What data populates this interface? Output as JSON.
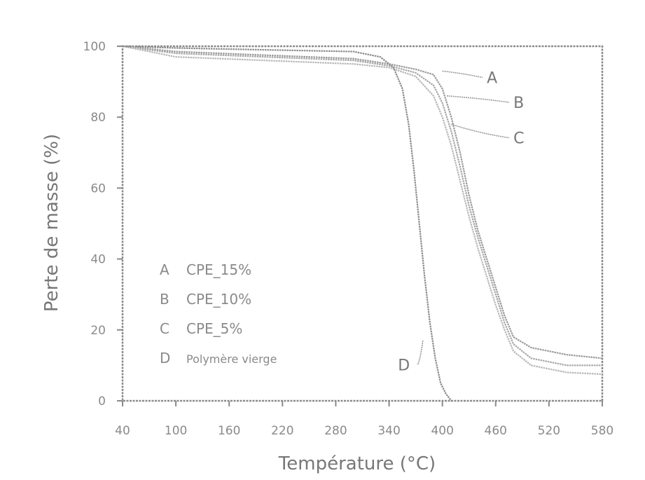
{
  "chart_data": {
    "type": "line",
    "xlabel": "Température (°C)",
    "ylabel": "Perte de masse (%)",
    "xlim": [
      40,
      580
    ],
    "ylim": [
      0,
      100
    ],
    "x_ticks": [
      "40",
      "100",
      "160",
      "220",
      "280",
      "340",
      "400",
      "460",
      "520",
      "580"
    ],
    "y_ticks": [
      "0",
      "20",
      "40",
      "60",
      "80",
      "100"
    ],
    "grid": false,
    "legend_position": "bottom-left",
    "legend": [
      {
        "key": "A",
        "label": "CPE_15%"
      },
      {
        "key": "B",
        "label": "CPE_10%"
      },
      {
        "key": "C",
        "label": "CPE_5%"
      },
      {
        "key": "D",
        "label": "Polymère vierge"
      }
    ],
    "series": [
      {
        "name": "A",
        "color": "#9a9a9a",
        "points": [
          [
            40,
            100
          ],
          [
            100,
            98.5
          ],
          [
            200,
            97.5
          ],
          [
            300,
            96.5
          ],
          [
            340,
            95
          ],
          [
            370,
            93.5
          ],
          [
            390,
            92
          ],
          [
            400,
            88
          ],
          [
            410,
            80
          ],
          [
            420,
            70
          ],
          [
            430,
            58
          ],
          [
            440,
            48
          ],
          [
            450,
            40
          ],
          [
            460,
            32
          ],
          [
            470,
            24
          ],
          [
            480,
            18
          ],
          [
            500,
            15
          ],
          [
            540,
            13
          ],
          [
            580,
            12
          ]
        ]
      },
      {
        "name": "B",
        "color": "#a8a8a8",
        "points": [
          [
            40,
            100
          ],
          [
            100,
            98
          ],
          [
            200,
            97
          ],
          [
            300,
            96
          ],
          [
            340,
            94.5
          ],
          [
            370,
            92.5
          ],
          [
            390,
            89
          ],
          [
            400,
            84
          ],
          [
            410,
            76
          ],
          [
            420,
            66
          ],
          [
            430,
            55
          ],
          [
            440,
            46
          ],
          [
            450,
            38
          ],
          [
            460,
            30
          ],
          [
            470,
            22
          ],
          [
            480,
            16
          ],
          [
            500,
            12
          ],
          [
            540,
            10
          ],
          [
            580,
            10
          ]
        ]
      },
      {
        "name": "C",
        "color": "#b8b8b8",
        "points": [
          [
            40,
            100
          ],
          [
            100,
            97
          ],
          [
            200,
            96
          ],
          [
            300,
            95
          ],
          [
            340,
            94
          ],
          [
            370,
            91.5
          ],
          [
            390,
            86
          ],
          [
            400,
            80
          ],
          [
            410,
            72
          ],
          [
            420,
            62
          ],
          [
            430,
            52
          ],
          [
            440,
            43
          ],
          [
            450,
            35
          ],
          [
            460,
            27
          ],
          [
            470,
            20
          ],
          [
            480,
            14
          ],
          [
            500,
            10
          ],
          [
            540,
            8
          ],
          [
            580,
            7.5
          ]
        ]
      },
      {
        "name": "D",
        "color": "#8c8c8c",
        "points": [
          [
            40,
            100
          ],
          [
            100,
            99.5
          ],
          [
            200,
            99
          ],
          [
            300,
            98.5
          ],
          [
            330,
            97
          ],
          [
            345,
            94
          ],
          [
            355,
            88
          ],
          [
            362,
            78
          ],
          [
            368,
            65
          ],
          [
            374,
            50
          ],
          [
            380,
            35
          ],
          [
            386,
            22
          ],
          [
            392,
            12
          ],
          [
            398,
            5
          ],
          [
            404,
            2
          ],
          [
            410,
            0
          ]
        ]
      }
    ],
    "curve_labels": [
      {
        "text": "A",
        "x": 450,
        "y": 90
      },
      {
        "text": "B",
        "x": 480,
        "y": 83
      },
      {
        "text": "C",
        "x": 480,
        "y": 73
      },
      {
        "text": "D",
        "x": 350,
        "y": 9
      }
    ]
  }
}
